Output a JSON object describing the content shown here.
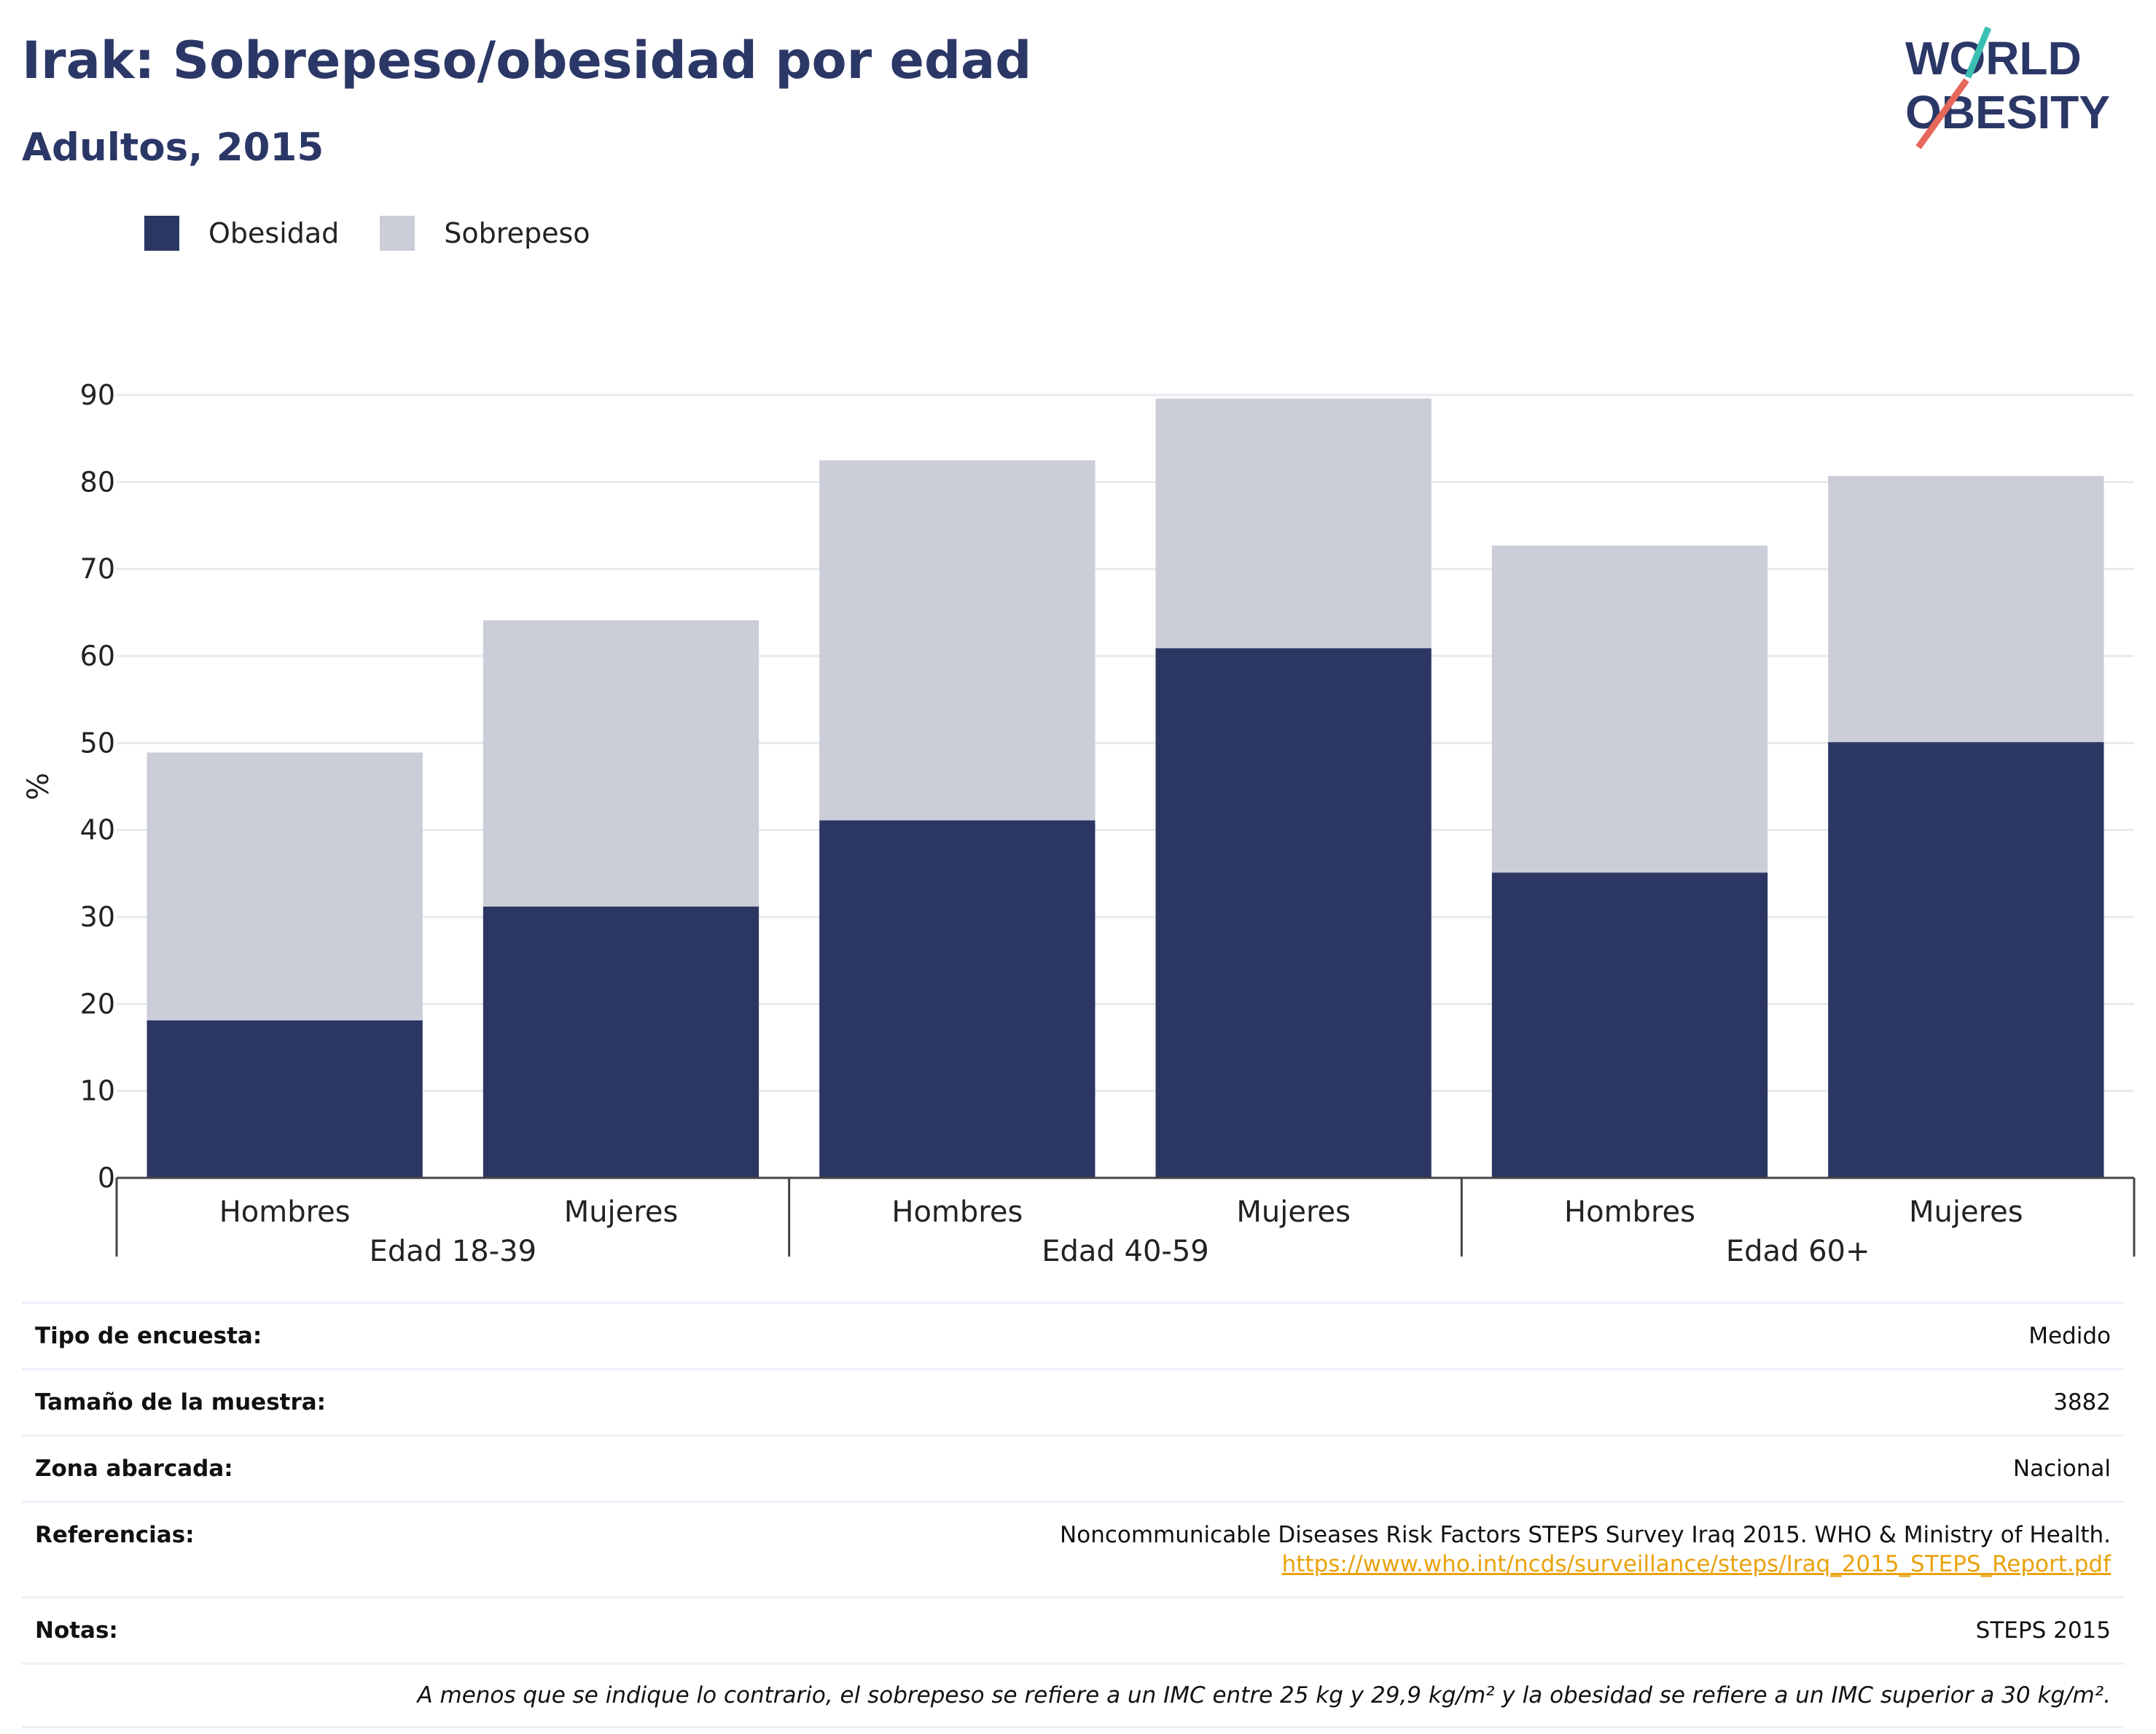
{
  "header": {
    "title": "Irak: Sobrepeso/obesidad por edad",
    "subtitle": "Adultos, 2015",
    "logo_text": [
      "WORLD",
      "OBESITY"
    ]
  },
  "legend": [
    {
      "label": "Obesidad",
      "color": "#2b3663"
    },
    {
      "label": "Sobrepeso",
      "color": "#cbcdd8"
    }
  ],
  "chart_data": {
    "type": "bar",
    "stacked": true,
    "categories": [
      "Hombres",
      "Mujeres",
      "Hombres",
      "Mujeres",
      "Hombres",
      "Mujeres"
    ],
    "groups": [
      {
        "label": "Edad 18-39",
        "count": 2
      },
      {
        "label": "Edad 40-59",
        "count": 2
      },
      {
        "label": "Edad 60+",
        "count": 2
      }
    ],
    "series": [
      {
        "name": "Obesidad",
        "values": [
          18.1,
          31.2,
          41.1,
          60.9,
          35.1,
          50.1
        ],
        "color": "#2b3663"
      },
      {
        "name": "Sobrepeso",
        "values": [
          30.8,
          32.9,
          41.4,
          28.7,
          37.6,
          30.6
        ],
        "color": "#cbcdd8"
      }
    ],
    "ylabel": "%",
    "ylim": [
      0,
      90
    ],
    "yticks": [
      0,
      10,
      20,
      30,
      40,
      50,
      60,
      70,
      80,
      90
    ],
    "grid": true
  },
  "info": {
    "rows": [
      {
        "key": "Tipo de encuesta:",
        "value": "Medido"
      },
      {
        "key": "Tamaño de la muestra:",
        "value": "3882"
      },
      {
        "key": "Zona abarcada:",
        "value": "Nacional"
      }
    ],
    "references": {
      "key": "Referencias:",
      "value": "Noncommunicable Diseases Risk Factors STEPS Survey Iraq 2015. WHO & Ministry of Health.",
      "link": "https://www.who.int/ncds/surveillance/steps/Iraq_2015_STEPS_Report.pdf"
    },
    "notes": {
      "key": "Notas:",
      "value": "STEPS 2015"
    },
    "footnote": "A menos que se indique lo contrario, el sobrepeso se refiere a un IMC entre 25 kg y 29,9 kg/m² y la obesidad se refiere a un IMC superior a 30 kg/m²."
  }
}
